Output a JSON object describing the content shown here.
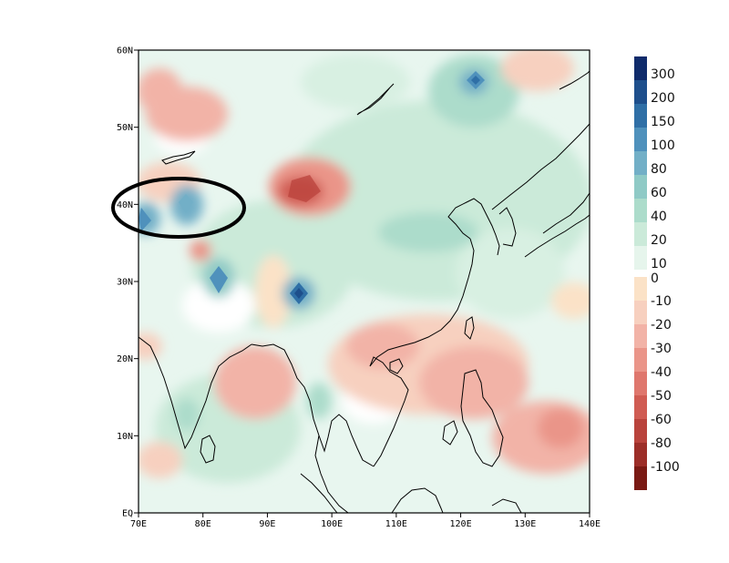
{
  "map": {
    "lat_ticks": [
      {
        "lat": 60,
        "label": "60N"
      },
      {
        "lat": 50,
        "label": "50N"
      },
      {
        "lat": 40,
        "label": "40N"
      },
      {
        "lat": 30,
        "label": "30N"
      },
      {
        "lat": 20,
        "label": "20N"
      },
      {
        "lat": 10,
        "label": "10N"
      },
      {
        "lat": 0,
        "label": "EQ"
      }
    ],
    "lon_ticks": [
      {
        "lon": 70,
        "label": "70E"
      },
      {
        "lon": 80,
        "label": "80E"
      },
      {
        "lon": 90,
        "label": "90E"
      },
      {
        "lon": 100,
        "label": "100E"
      },
      {
        "lon": 110,
        "label": "110E"
      },
      {
        "lon": 120,
        "label": "120E"
      },
      {
        "lon": 130,
        "label": "130E"
      },
      {
        "lon": 140,
        "label": "140E"
      }
    ],
    "extent": {
      "lon": [
        70,
        140
      ],
      "lat": [
        0,
        60
      ]
    }
  },
  "colorbar": {
    "positive": [
      {
        "label": "300",
        "color": "#0f2b6b"
      },
      {
        "label": "200",
        "color": "#1e4f8c"
      },
      {
        "label": "150",
        "color": "#2f6fa6"
      },
      {
        "label": "100",
        "color": "#4f91bc"
      },
      {
        "label": "80",
        "color": "#72afc7"
      },
      {
        "label": "60",
        "color": "#8fcac6"
      },
      {
        "label": "40",
        "color": "#acdccb"
      },
      {
        "label": "20",
        "color": "#cbead9"
      },
      {
        "label": "10",
        "color": "#e6f5ec"
      }
    ],
    "zero": {
      "label": "0",
      "color": "#fbe2c7"
    },
    "negative": [
      {
        "label": "-10",
        "color": "#f7d0bf"
      },
      {
        "label": "-20",
        "color": "#f2b3a7"
      },
      {
        "label": "-30",
        "color": "#ea9589"
      },
      {
        "label": "-40",
        "color": "#df776d"
      },
      {
        "label": "-50",
        "color": "#d05c53"
      },
      {
        "label": "-60",
        "color": "#b9433c"
      },
      {
        "label": "-80",
        "color": "#9c2e28"
      },
      {
        "label": "-100",
        "color": "#7a1a14"
      }
    ]
  }
}
